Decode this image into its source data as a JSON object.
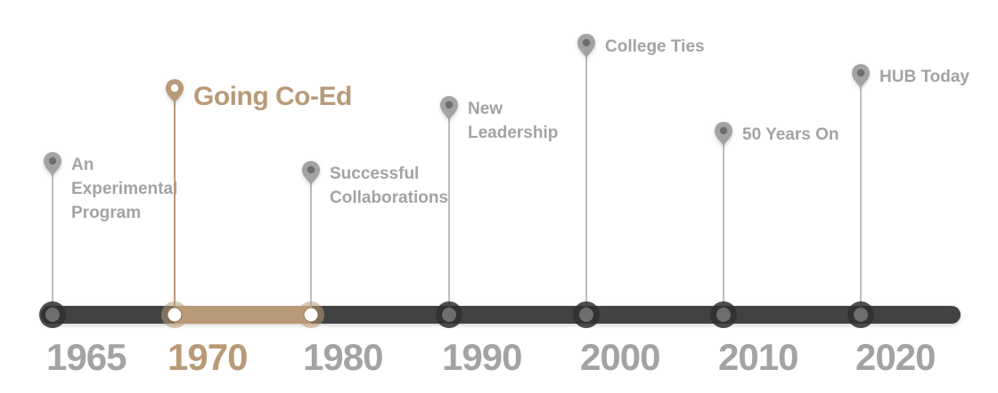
{
  "colors": {
    "track": "#424242",
    "grey": "#a3a3a5",
    "grey_dark": "#6e6e70",
    "gold": "#b89a78",
    "gold_dark": "#8f7350",
    "white": "#ffffff"
  },
  "timeline": {
    "active_range": [
      "1970",
      "1980"
    ],
    "milestones": [
      {
        "year": "1965",
        "title_lines": [
          "An",
          "Experimental",
          "Program"
        ],
        "active": false,
        "icon": "map-pin-icon"
      },
      {
        "year": "1970",
        "title_lines": [
          "Going Co-Ed"
        ],
        "active": true,
        "icon": "map-pin-icon"
      },
      {
        "year": "1980",
        "title_lines": [
          "Successful",
          "Collaborations"
        ],
        "active": false,
        "icon": "map-pin-icon"
      },
      {
        "year": "1990",
        "title_lines": [
          "New",
          "Leadership"
        ],
        "active": false,
        "icon": "map-pin-icon"
      },
      {
        "year": "2000",
        "title_lines": [
          "College Ties"
        ],
        "active": false,
        "icon": "map-pin-icon"
      },
      {
        "year": "2010",
        "title_lines": [
          "50 Years On"
        ],
        "active": false,
        "icon": "map-pin-icon"
      },
      {
        "year": "2020",
        "title_lines": [
          "HUB Today"
        ],
        "active": false,
        "icon": "map-pin-icon"
      }
    ]
  }
}
